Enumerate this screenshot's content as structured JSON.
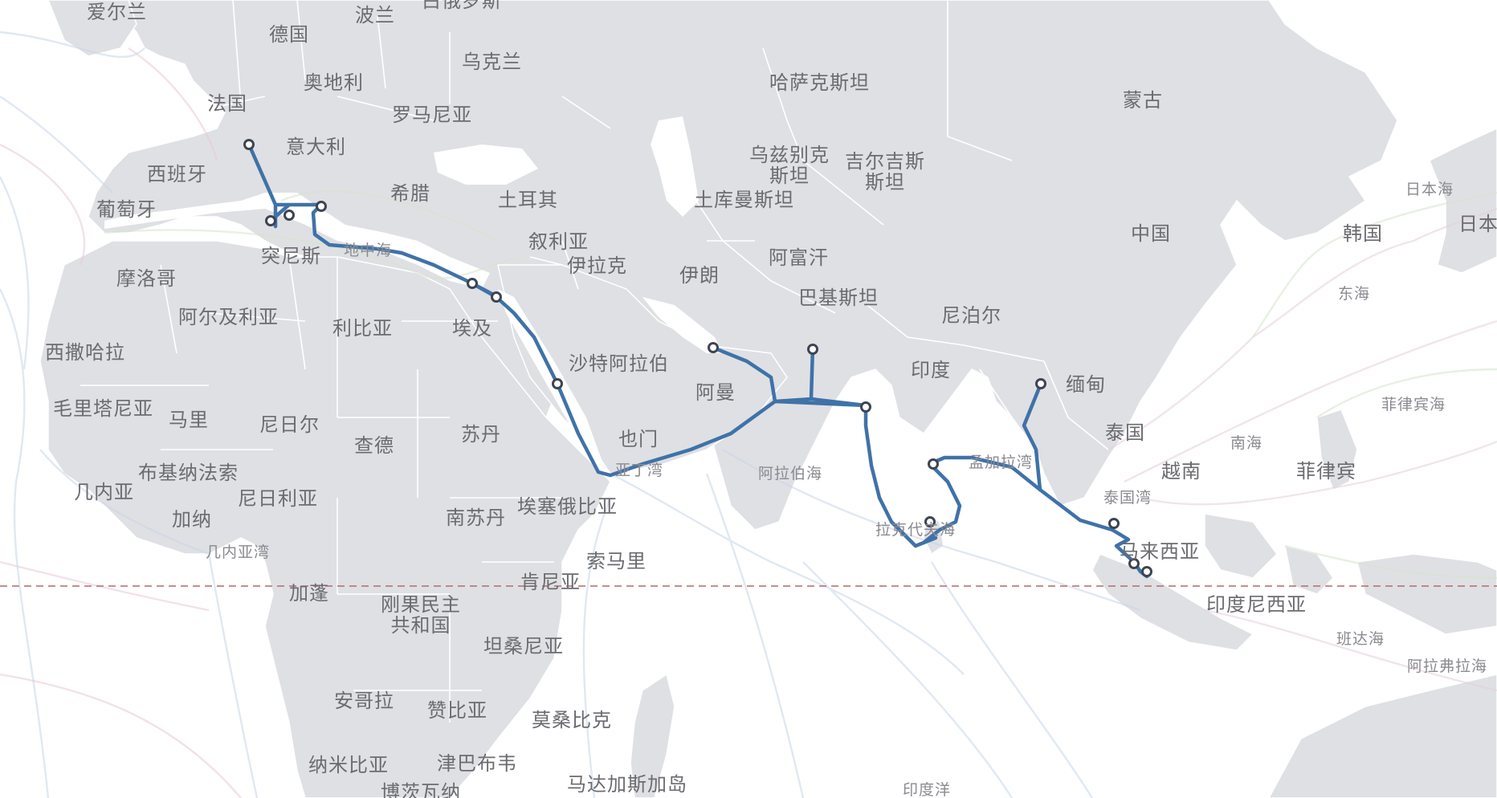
{
  "map": {
    "labels": [
      {
        "key": "ireland",
        "text": "爱尔兰"
      },
      {
        "key": "poland",
        "text": "波兰"
      },
      {
        "key": "belarus",
        "text": "白俄罗斯"
      },
      {
        "key": "germany",
        "text": "德国"
      },
      {
        "key": "ukraine",
        "text": "乌克兰"
      },
      {
        "key": "austria",
        "text": "奥地利"
      },
      {
        "key": "kazakhstan",
        "text": "哈萨克斯坦"
      },
      {
        "key": "mongolia",
        "text": "蒙古"
      },
      {
        "key": "france",
        "text": "法国"
      },
      {
        "key": "romania",
        "text": "罗马尼亚"
      },
      {
        "key": "italy",
        "text": "意大利"
      },
      {
        "key": "uzbekistan",
        "text": "乌兹别克\n斯坦"
      },
      {
        "key": "kyrgyzstan",
        "text": "吉尔吉斯\n斯坦"
      },
      {
        "key": "spain",
        "text": "西班牙"
      },
      {
        "key": "greece",
        "text": "希腊"
      },
      {
        "key": "turkey",
        "text": "土耳其"
      },
      {
        "key": "turkmenistan",
        "text": "土库曼斯坦"
      },
      {
        "key": "portugal",
        "text": "葡萄牙"
      },
      {
        "key": "china",
        "text": "中国"
      },
      {
        "key": "korea",
        "text": "韩国"
      },
      {
        "key": "japan",
        "text": "日本"
      },
      {
        "key": "syria",
        "text": "叙利亚"
      },
      {
        "key": "tunisia",
        "text": "突尼斯"
      },
      {
        "key": "iraq",
        "text": "伊拉克"
      },
      {
        "key": "afghanistan",
        "text": "阿富汗"
      },
      {
        "key": "morocco",
        "text": "摩洛哥"
      },
      {
        "key": "iran",
        "text": "伊朗"
      },
      {
        "key": "pakistan",
        "text": "巴基斯坦"
      },
      {
        "key": "algeria",
        "text": "阿尔及利亚"
      },
      {
        "key": "libya",
        "text": "利比亚"
      },
      {
        "key": "egypt",
        "text": "埃及"
      },
      {
        "key": "nepal",
        "text": "尼泊尔"
      },
      {
        "key": "western_sahara",
        "text": "西撒哈拉"
      },
      {
        "key": "saudi",
        "text": "沙特阿拉伯"
      },
      {
        "key": "india",
        "text": "印度"
      },
      {
        "key": "myanmar",
        "text": "缅甸"
      },
      {
        "key": "oman",
        "text": "阿曼"
      },
      {
        "key": "mauritania",
        "text": "毛里塔尼亚"
      },
      {
        "key": "mali",
        "text": "马里"
      },
      {
        "key": "niger",
        "text": "尼日尔"
      },
      {
        "key": "thailand",
        "text": "泰国"
      },
      {
        "key": "sudan",
        "text": "苏丹"
      },
      {
        "key": "yemen",
        "text": "也门"
      },
      {
        "key": "chad",
        "text": "查德"
      },
      {
        "key": "vietnam",
        "text": "越南"
      },
      {
        "key": "philippines",
        "text": "菲律宾"
      },
      {
        "key": "burkina",
        "text": "布基纳法索"
      },
      {
        "key": "guinea",
        "text": "几内亚"
      },
      {
        "key": "nigeria",
        "text": "尼日利亚"
      },
      {
        "key": "south_sudan",
        "text": "南苏丹"
      },
      {
        "key": "ethiopia",
        "text": "埃塞俄比亚"
      },
      {
        "key": "ghana",
        "text": "加纳"
      },
      {
        "key": "malaysia",
        "text": "马来西亚"
      },
      {
        "key": "somalia",
        "text": "索马里"
      },
      {
        "key": "kenya",
        "text": "肯尼亚"
      },
      {
        "key": "gabon",
        "text": "加蓬"
      },
      {
        "key": "drc",
        "text": "刚果民主\n共和国"
      },
      {
        "key": "indonesia",
        "text": "印度尼西亚"
      },
      {
        "key": "tanzania",
        "text": "坦桑尼亚"
      },
      {
        "key": "angola",
        "text": "安哥拉"
      },
      {
        "key": "zambia",
        "text": "赞比亚"
      },
      {
        "key": "mozambique",
        "text": "莫桑比克"
      },
      {
        "key": "namibia",
        "text": "纳米比亚"
      },
      {
        "key": "zimbabwe",
        "text": "津巴布韦"
      },
      {
        "key": "botswana",
        "text": "博茨瓦纳"
      },
      {
        "key": "madagascar",
        "text": "马达加斯加岛"
      }
    ],
    "sea_labels": [
      {
        "key": "sea_japan",
        "text": "日本海"
      },
      {
        "key": "east_china_sea",
        "text": "东海"
      },
      {
        "key": "mediterranean",
        "text": "地中海"
      },
      {
        "key": "philippine_sea",
        "text": "菲律宾海"
      },
      {
        "key": "arabian_sea",
        "text": "阿拉伯海"
      },
      {
        "key": "bay_bengal",
        "text": "孟加拉湾"
      },
      {
        "key": "south_china_sea",
        "text": "南海"
      },
      {
        "key": "gulf_aden",
        "text": "亚丁湾"
      },
      {
        "key": "gulf_thailand",
        "text": "泰国湾"
      },
      {
        "key": "laccadive",
        "text": "拉克代夫海"
      },
      {
        "key": "gulf_guinea",
        "text": "几内亚湾"
      },
      {
        "key": "banda_sea",
        "text": "班达海"
      },
      {
        "key": "arafura",
        "text": "阿拉弗拉海"
      },
      {
        "key": "indian_ocean",
        "text": "印度洋"
      }
    ],
    "colors": {
      "land": "#dfe0e4",
      "water": "#ffffff",
      "route": "#3f72a8",
      "station_stroke": "#3d4452",
      "equator": "#b46a6a"
    }
  }
}
